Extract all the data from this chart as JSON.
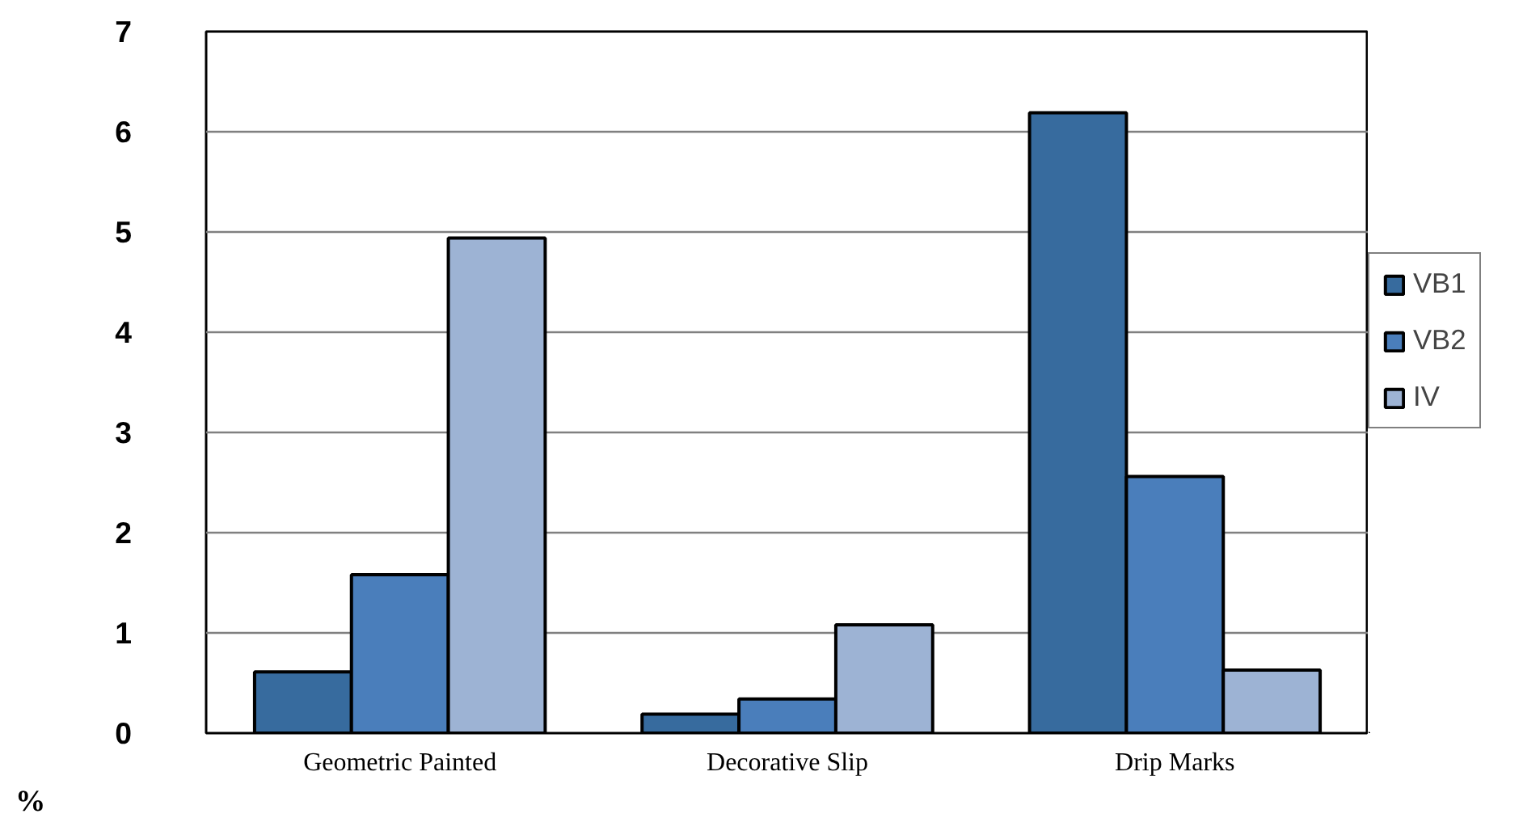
{
  "chart_data": {
    "type": "bar",
    "ylabel": "%",
    "categories": [
      "Geometric Painted",
      "Decorative Slip",
      "Drip Marks"
    ],
    "series": [
      {
        "name": "VB1",
        "color": "#376b9e",
        "values": [
          0.61,
          0.19,
          6.19
        ]
      },
      {
        "name": "VB2",
        "color": "#4a7ebb",
        "values": [
          1.58,
          0.34,
          2.56
        ]
      },
      {
        "name": "IV",
        "color": "#9db3d4",
        "values": [
          4.94,
          1.08,
          0.63
        ]
      }
    ],
    "ylim": [
      0,
      7
    ],
    "yticks": [
      0,
      1,
      2,
      3,
      4,
      5,
      6,
      7
    ],
    "grid": "y",
    "legend": "right"
  }
}
